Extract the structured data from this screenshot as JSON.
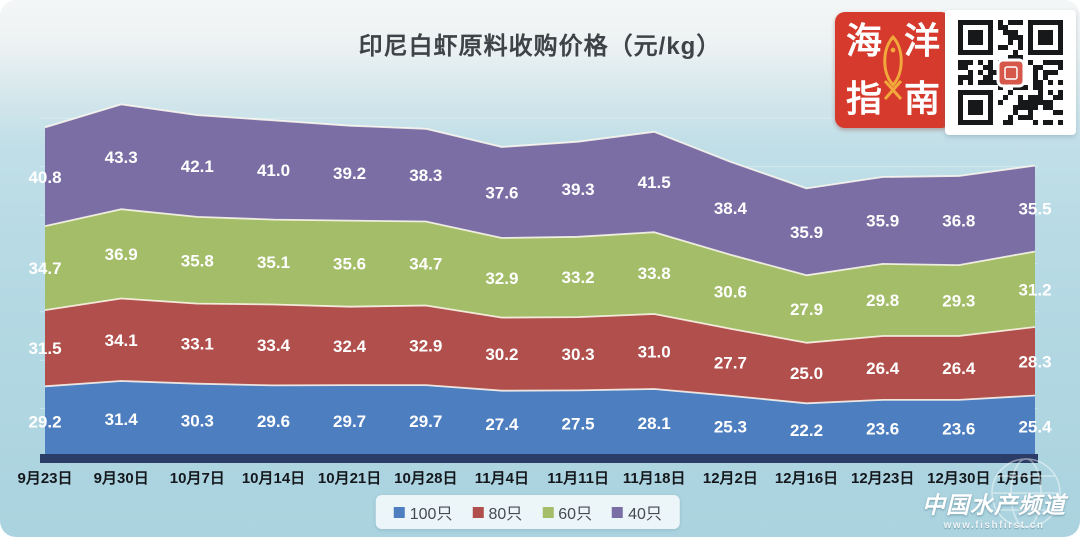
{
  "chart_data": {
    "type": "area",
    "stacking": "stacked",
    "title": "印尼白虾原料收购价格（元/kg）",
    "unit": "元/kg",
    "legend_position": "bottom",
    "grid": "subtle-horizontal",
    "value_labels": true,
    "categories": [
      "9月23日",
      "9月30日",
      "10月7日",
      "10月14日",
      "10月21日",
      "10月28日",
      "11月4日",
      "11月11日",
      "11月18日",
      "12月2日",
      "12月16日",
      "12月23日",
      "12月30日",
      "1月6日"
    ],
    "series": [
      {
        "name": "100只",
        "color": "#4d7ec0",
        "values": [
          29.2,
          31.4,
          30.3,
          29.6,
          29.7,
          29.7,
          27.4,
          27.5,
          28.1,
          25.3,
          22.2,
          23.6,
          23.6,
          25.4
        ]
      },
      {
        "name": "80只",
        "color": "#b04f4b",
        "values": [
          31.5,
          34.1,
          33.1,
          33.4,
          32.4,
          32.9,
          30.2,
          30.3,
          31.0,
          27.7,
          25.0,
          26.4,
          26.4,
          28.3
        ]
      },
      {
        "name": "60只",
        "color": "#a3bd68",
        "values": [
          34.7,
          36.9,
          35.8,
          35.1,
          35.6,
          34.7,
          32.9,
          33.2,
          33.8,
          30.6,
          27.9,
          29.8,
          29.3,
          31.2
        ]
      },
      {
        "name": "40只",
        "color": "#7a6ea4",
        "values": [
          40.8,
          43.3,
          42.1,
          41.0,
          39.2,
          38.3,
          37.6,
          39.3,
          41.5,
          38.4,
          35.9,
          35.9,
          36.8,
          35.5
        ]
      }
    ],
    "axis_bar_color": "#2b3c66",
    "label_color": "#ffffff"
  },
  "logo": {
    "chars": [
      "海",
      "洋",
      "指",
      "南"
    ],
    "bg_color": "#d53a2c",
    "fish_color": "#f2a93b"
  },
  "watermark": {
    "brand": "中国水产频道",
    "url": "www.fishfirst.cn"
  }
}
